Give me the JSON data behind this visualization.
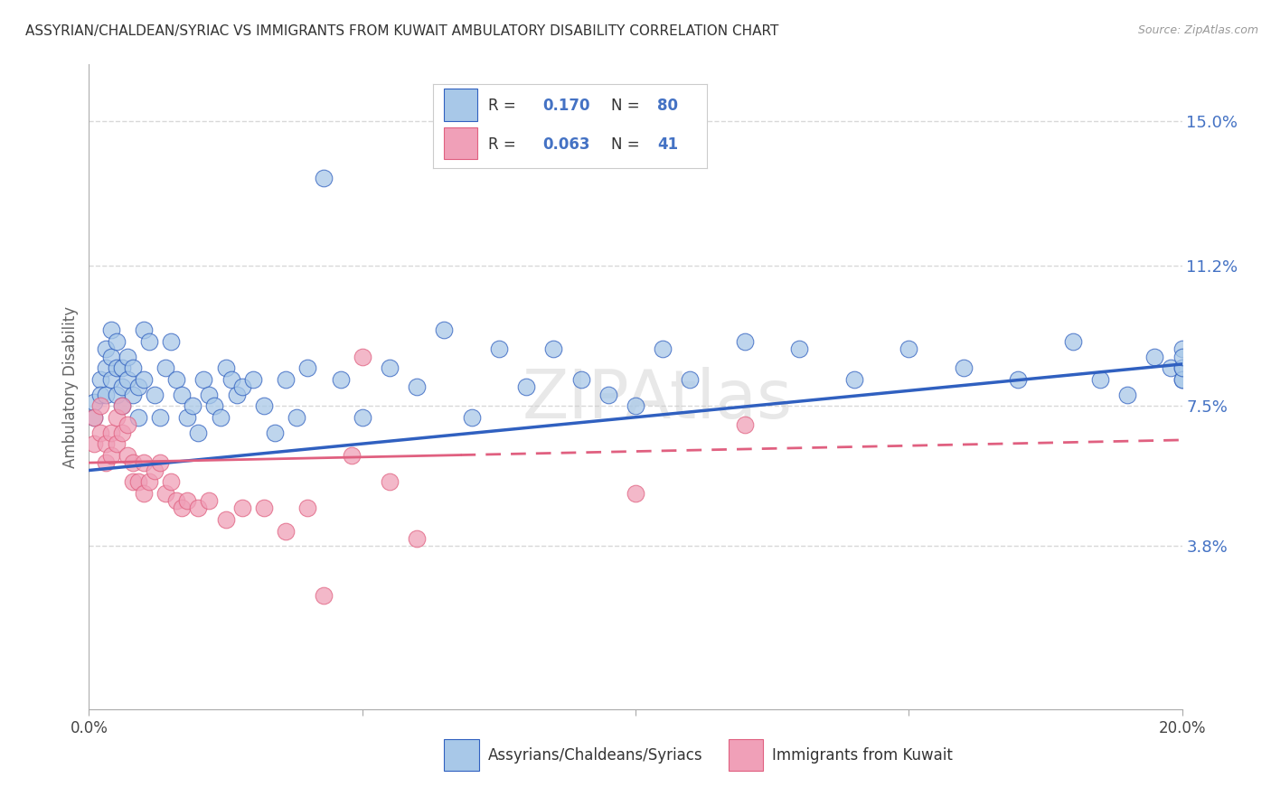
{
  "title": "ASSYRIAN/CHALDEAN/SYRIAC VS IMMIGRANTS FROM KUWAIT AMBULATORY DISABILITY CORRELATION CHART",
  "source": "Source: ZipAtlas.com",
  "ylabel": "Ambulatory Disability",
  "xlim": [
    0.0,
    0.2
  ],
  "ylim": [
    -0.005,
    0.165
  ],
  "yticks_right": [
    0.038,
    0.075,
    0.112,
    0.15
  ],
  "ytick_labels_right": [
    "3.8%",
    "7.5%",
    "11.2%",
    "15.0%"
  ],
  "color_blue": "#A8C8E8",
  "color_pink": "#F0A0B8",
  "color_blue_dark": "#3060C0",
  "color_pink_dark": "#E06080",
  "color_axis_label": "#4472C4",
  "group1_label": "Assyrians/Chaldeans/Syriacs",
  "group2_label": "Immigrants from Kuwait",
  "blue_R": 0.17,
  "pink_R": 0.063,
  "blue_N": 80,
  "pink_N": 41,
  "blue_scatter_x": [
    0.001,
    0.001,
    0.002,
    0.002,
    0.003,
    0.003,
    0.003,
    0.004,
    0.004,
    0.004,
    0.005,
    0.005,
    0.005,
    0.006,
    0.006,
    0.006,
    0.007,
    0.007,
    0.008,
    0.008,
    0.009,
    0.009,
    0.01,
    0.01,
    0.011,
    0.012,
    0.013,
    0.014,
    0.015,
    0.016,
    0.017,
    0.018,
    0.019,
    0.02,
    0.021,
    0.022,
    0.023,
    0.024,
    0.025,
    0.026,
    0.027,
    0.028,
    0.03,
    0.032,
    0.034,
    0.036,
    0.038,
    0.04,
    0.043,
    0.046,
    0.05,
    0.055,
    0.06,
    0.065,
    0.07,
    0.075,
    0.08,
    0.085,
    0.09,
    0.095,
    0.1,
    0.105,
    0.11,
    0.12,
    0.13,
    0.14,
    0.15,
    0.16,
    0.17,
    0.18,
    0.185,
    0.19,
    0.195,
    0.198,
    0.2,
    0.2,
    0.2,
    0.2,
    0.2,
    0.2
  ],
  "blue_scatter_y": [
    0.076,
    0.072,
    0.082,
    0.078,
    0.09,
    0.085,
    0.078,
    0.095,
    0.088,
    0.082,
    0.092,
    0.085,
    0.078,
    0.085,
    0.08,
    0.075,
    0.088,
    0.082,
    0.085,
    0.078,
    0.08,
    0.072,
    0.095,
    0.082,
    0.092,
    0.078,
    0.072,
    0.085,
    0.092,
    0.082,
    0.078,
    0.072,
    0.075,
    0.068,
    0.082,
    0.078,
    0.075,
    0.072,
    0.085,
    0.082,
    0.078,
    0.08,
    0.082,
    0.075,
    0.068,
    0.082,
    0.072,
    0.085,
    0.135,
    0.082,
    0.072,
    0.085,
    0.08,
    0.095,
    0.072,
    0.09,
    0.08,
    0.09,
    0.082,
    0.078,
    0.075,
    0.09,
    0.082,
    0.092,
    0.09,
    0.082,
    0.09,
    0.085,
    0.082,
    0.092,
    0.082,
    0.078,
    0.088,
    0.085,
    0.082,
    0.085,
    0.09,
    0.082,
    0.085,
    0.088
  ],
  "pink_scatter_x": [
    0.001,
    0.001,
    0.002,
    0.002,
    0.003,
    0.003,
    0.004,
    0.004,
    0.005,
    0.005,
    0.006,
    0.006,
    0.007,
    0.007,
    0.008,
    0.008,
    0.009,
    0.01,
    0.01,
    0.011,
    0.012,
    0.013,
    0.014,
    0.015,
    0.016,
    0.017,
    0.018,
    0.02,
    0.022,
    0.025,
    0.028,
    0.032,
    0.036,
    0.04,
    0.043,
    0.048,
    0.05,
    0.055,
    0.06,
    0.1,
    0.12
  ],
  "pink_scatter_y": [
    0.072,
    0.065,
    0.075,
    0.068,
    0.065,
    0.06,
    0.068,
    0.062,
    0.072,
    0.065,
    0.075,
    0.068,
    0.07,
    0.062,
    0.06,
    0.055,
    0.055,
    0.06,
    0.052,
    0.055,
    0.058,
    0.06,
    0.052,
    0.055,
    0.05,
    0.048,
    0.05,
    0.048,
    0.05,
    0.045,
    0.048,
    0.048,
    0.042,
    0.048,
    0.025,
    0.062,
    0.088,
    0.055,
    0.04,
    0.052,
    0.07
  ],
  "watermark": "ZIPAtlas",
  "bg_color": "#FFFFFF",
  "grid_color": "#D8D8D8",
  "blue_line_start_y": 0.058,
  "blue_line_end_y": 0.086,
  "pink_line_start_y": 0.06,
  "pink_line_end_y": 0.066
}
